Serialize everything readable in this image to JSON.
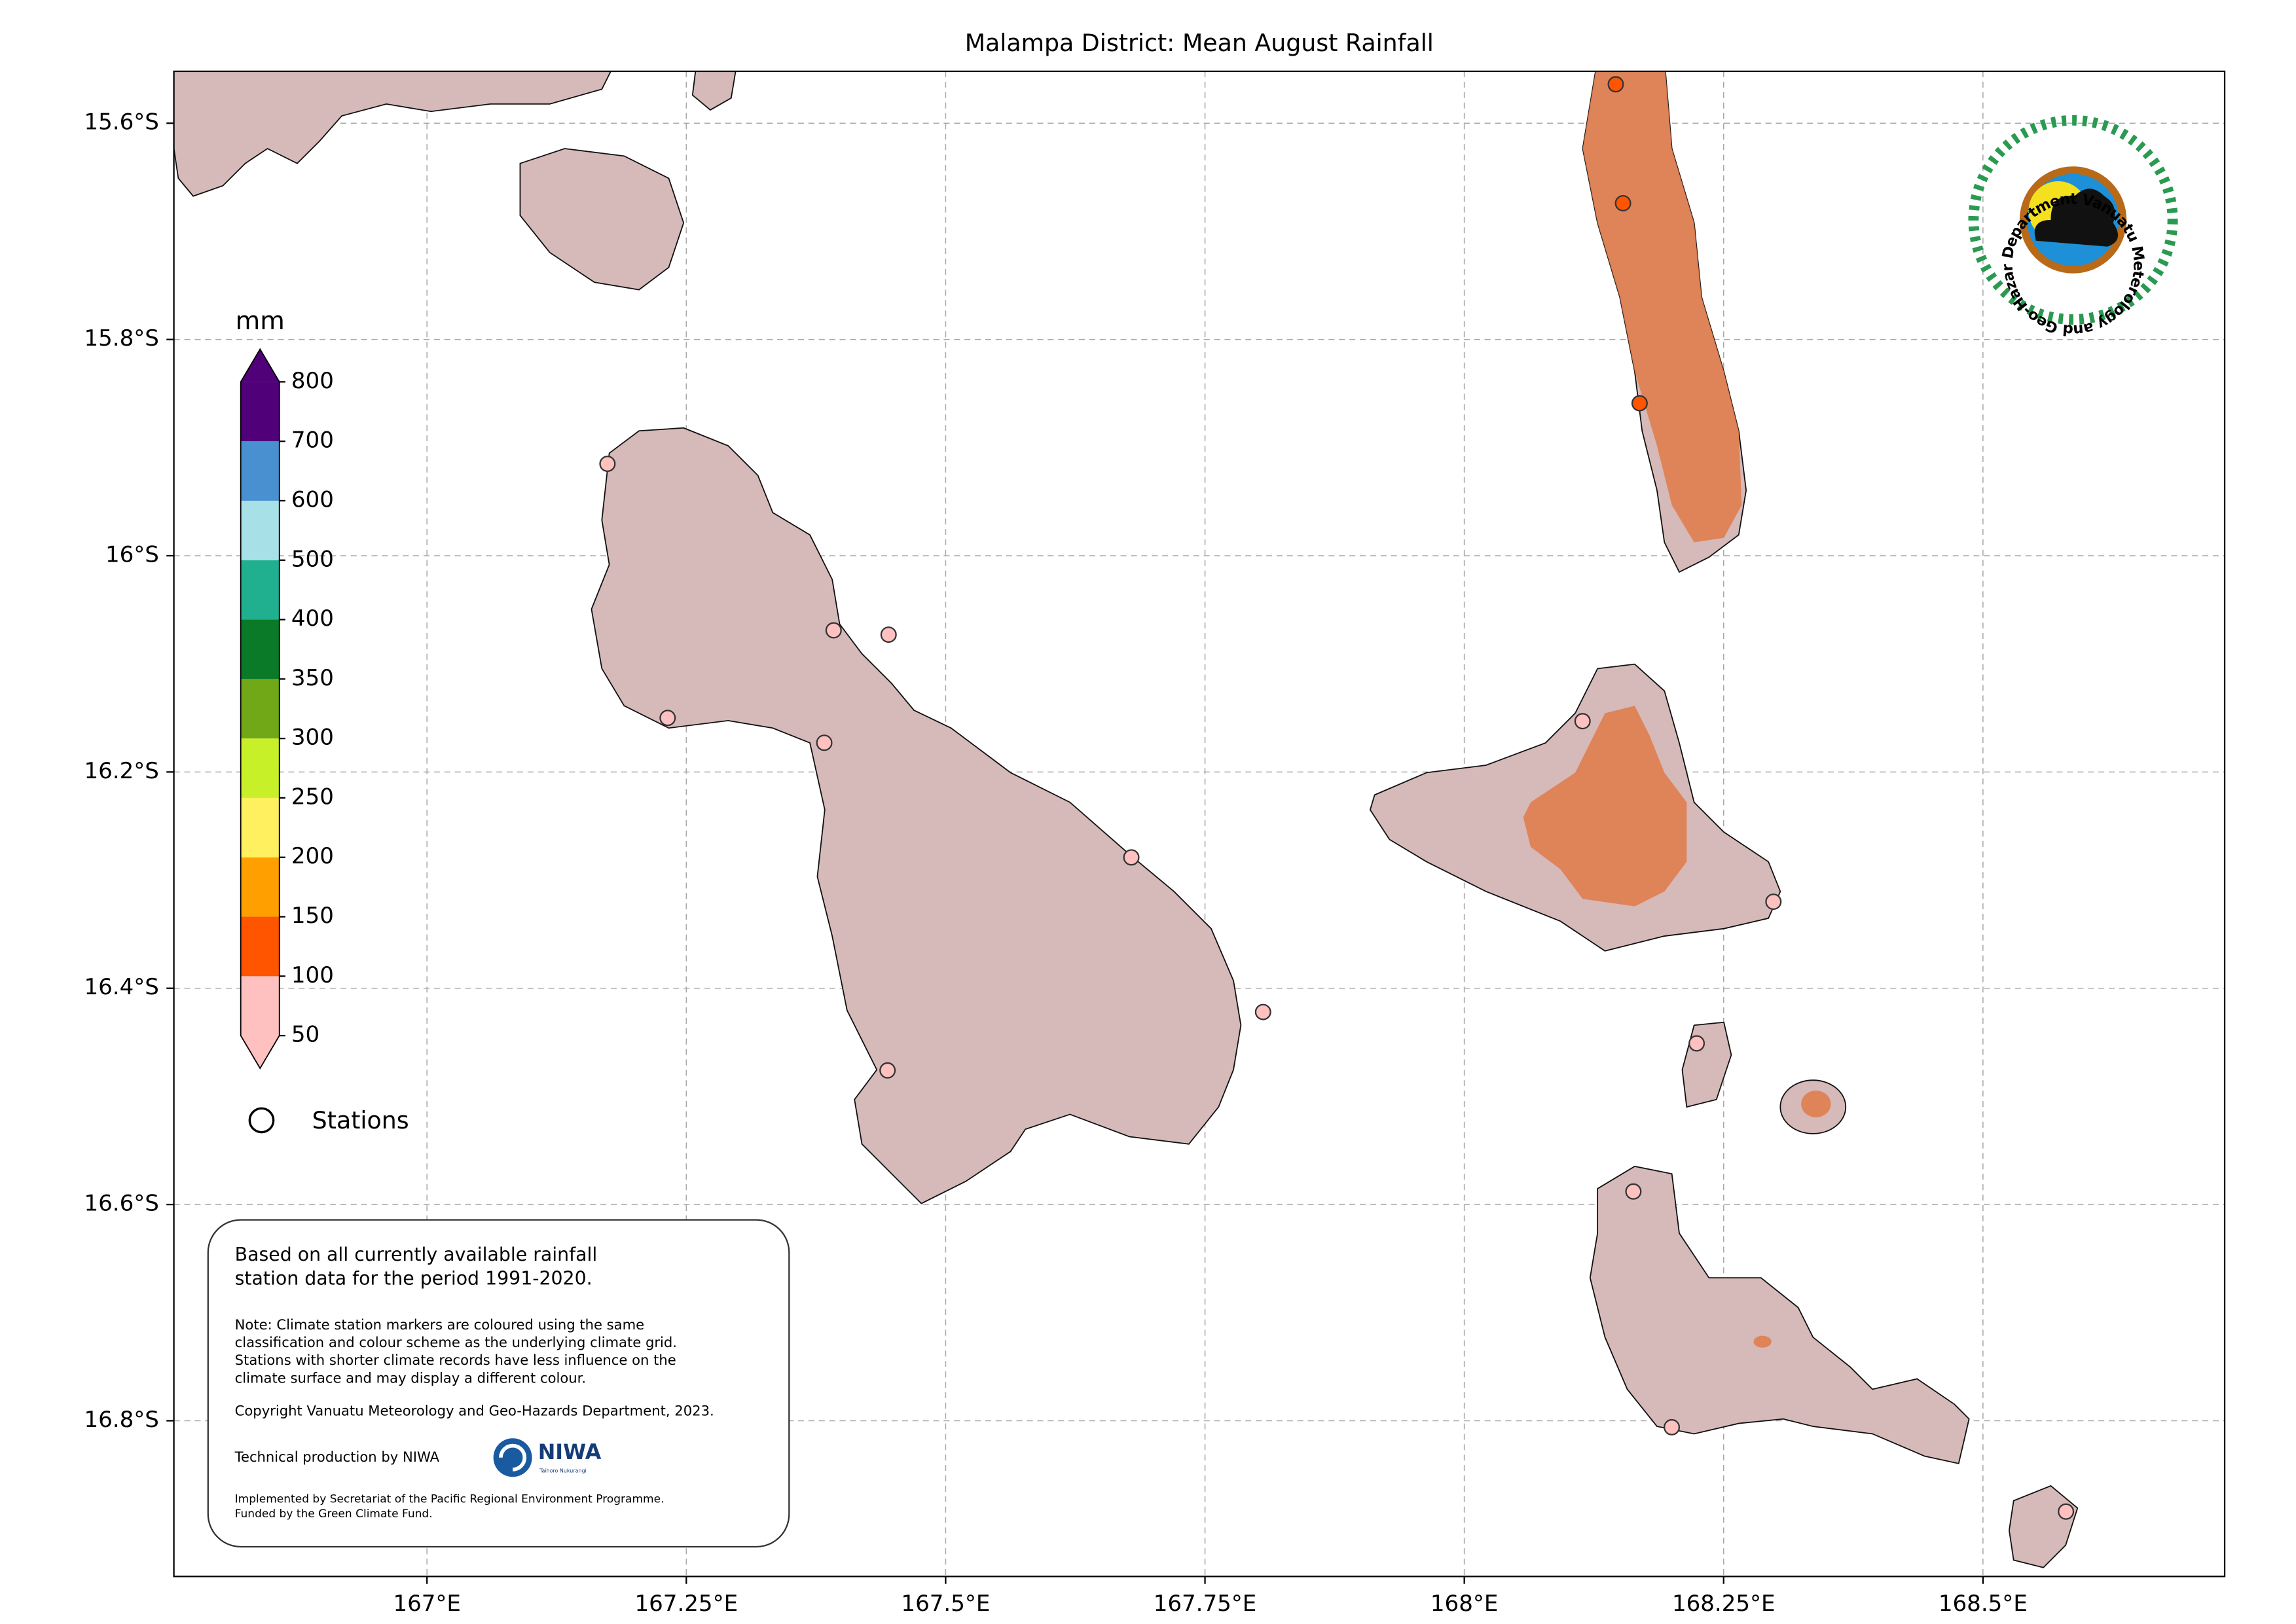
{
  "map": {
    "title": "Malampa District: Mean August Rainfall",
    "xlim": [
      166.756,
      168.733
    ],
    "ylim": [
      -16.944,
      -15.552
    ],
    "grid": true,
    "xticks": [
      {
        "value": 167,
        "label": "167°E"
      },
      {
        "value": 167.25,
        "label": "167.25°E"
      },
      {
        "value": 167.5,
        "label": "167.5°E"
      },
      {
        "value": 167.75,
        "label": "167.75°E"
      },
      {
        "value": 168,
        "label": "168°E"
      },
      {
        "value": 168.25,
        "label": "168.25°E"
      },
      {
        "value": 168.5,
        "label": "168.5°E"
      }
    ],
    "yticks": [
      {
        "value": -15.6,
        "label": "15.6°S"
      },
      {
        "value": -15.8,
        "label": "15.8°S"
      },
      {
        "value": -16,
        "label": "16°S"
      },
      {
        "value": -16.2,
        "label": "16.2°S"
      },
      {
        "value": -16.4,
        "label": "16.4°S"
      },
      {
        "value": -16.6,
        "label": "16.6°S"
      },
      {
        "value": -16.8,
        "label": "16.8°S"
      }
    ]
  },
  "colorbar": {
    "unit": "mm",
    "levels": [
      50,
      100,
      150,
      200,
      250,
      300,
      350,
      400,
      500,
      600,
      700,
      800
    ],
    "colors": [
      "#ffc0c0",
      "#ff5500",
      "#ffa000",
      "#fff060",
      "#c8f028",
      "#70a818",
      "#0a7a28",
      "#20b090",
      "#a8e0e8",
      "#4890d0",
      "#500078"
    ]
  },
  "stations": {
    "label": "Stations",
    "lon": [
      168.146,
      168.153,
      168.169,
      167.174,
      167.392,
      167.445,
      167.232,
      167.383,
      167.679,
      168.114,
      168.298,
      167.806,
      167.444,
      168.224,
      168.163,
      168.2,
      168.58
    ],
    "lat": [
      -15.564,
      -15.674,
      -15.859,
      -15.915,
      -16.069,
      -16.073,
      -16.15,
      -16.173,
      -16.279,
      -16.153,
      -16.32,
      -16.422,
      -16.476,
      -16.451,
      -16.588,
      -16.806,
      -16.884
    ],
    "colors": [
      "#ff5500",
      "#ff5500",
      "#ff5500",
      "#ffc0c0",
      "#ffc0c0",
      "#ffc0c0",
      "#ffc0c0",
      "#ffc0c0",
      "#ffc0c0",
      "#ffc0c0",
      "#ffc0c0",
      "#ffc0c0",
      "#ffc0c0",
      "#ffc0c0",
      "#ffc0c0",
      "#ffc0c0",
      "#ffc0c0"
    ]
  },
  "notes": {
    "intro": [
      "Based on all currently available rainfall",
      "station data for the period 1991-2020."
    ],
    "note": [
      "Note: Climate station markers are coloured using the same",
      "classification and colour scheme as the underlying climate grid.",
      "Stations with shorter climate records have less influence on the",
      "climate surface and may display a different colour."
    ],
    "copyright": "Copyright Vanuatu Meteorology and Geo-Hazards Department, 2023.",
    "production": "Technical production by NIWA",
    "funding": [
      "Implemented by Secretariat of the Pacific Regional Environment Programme.",
      "Funded by the Green Climate Fund."
    ]
  },
  "logos": {
    "vmgd": "Department Vanuatu Meterology and Geo-Hazards",
    "niwa": "NIWA",
    "niwa_sub": "Taihoro Nukurangi"
  }
}
